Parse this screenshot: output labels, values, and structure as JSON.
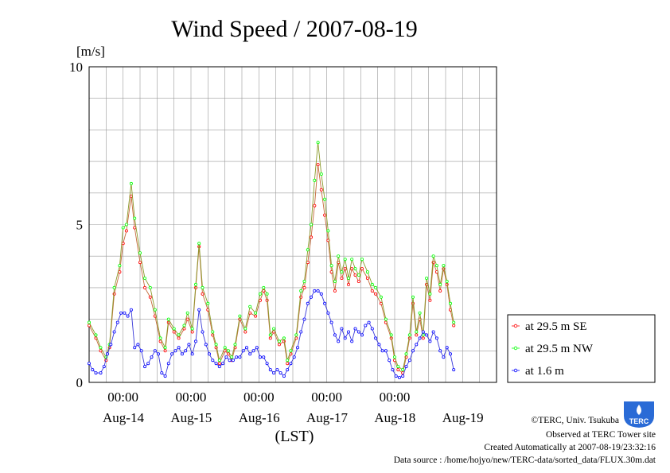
{
  "chart_data": {
    "type": "line",
    "title": "Wind Speed / 2007-08-19",
    "ylabel": "[m/s]",
    "xlabel": "(LST)",
    "ylim": [
      0,
      10
    ],
    "yticks": [
      "0",
      "5",
      "10"
    ],
    "x_range_days": [
      0,
      6
    ],
    "x_axis_start": "2007-08-13 12:00",
    "x_time_ticks": [
      "00:00",
      "00:00",
      "00:00",
      "00:00",
      "00:00"
    ],
    "x_date_labels": [
      "Aug-14",
      "Aug-15",
      "Aug-16",
      "Aug-17",
      "Aug-18",
      "Aug-19"
    ],
    "grid": true,
    "legend_position": "right",
    "series": [
      {
        "name": "at 29.5 m SE",
        "color": "#ff0000",
        "points": [
          [
            0.0,
            1.8
          ],
          [
            0.1,
            1.4
          ],
          [
            0.17,
            1.0
          ],
          [
            0.25,
            0.7
          ],
          [
            0.3,
            1.1
          ],
          [
            0.37,
            2.8
          ],
          [
            0.45,
            3.5
          ],
          [
            0.5,
            4.4
          ],
          [
            0.55,
            4.8
          ],
          [
            0.62,
            5.9
          ],
          [
            0.67,
            4.9
          ],
          [
            0.75,
            3.8
          ],
          [
            0.82,
            3.0
          ],
          [
            0.9,
            2.7
          ],
          [
            0.97,
            2.1
          ],
          [
            1.05,
            1.3
          ],
          [
            1.12,
            1.0
          ],
          [
            1.17,
            1.9
          ],
          [
            1.25,
            1.6
          ],
          [
            1.32,
            1.4
          ],
          [
            1.4,
            1.7
          ],
          [
            1.45,
            2.0
          ],
          [
            1.52,
            1.6
          ],
          [
            1.57,
            3.0
          ],
          [
            1.62,
            4.3
          ],
          [
            1.67,
            2.8
          ],
          [
            1.75,
            2.3
          ],
          [
            1.82,
            1.5
          ],
          [
            1.87,
            1.1
          ],
          [
            1.92,
            0.6
          ],
          [
            2.0,
            1.0
          ],
          [
            2.05,
            0.9
          ],
          [
            2.1,
            0.7
          ],
          [
            2.15,
            1.1
          ],
          [
            2.22,
            2.0
          ],
          [
            2.3,
            1.6
          ],
          [
            2.37,
            2.2
          ],
          [
            2.45,
            2.1
          ],
          [
            2.52,
            2.6
          ],
          [
            2.57,
            2.9
          ],
          [
            2.62,
            2.6
          ],
          [
            2.67,
            1.4
          ],
          [
            2.72,
            1.6
          ],
          [
            2.8,
            1.2
          ],
          [
            2.87,
            1.3
          ],
          [
            2.92,
            0.6
          ],
          [
            2.97,
            0.9
          ],
          [
            3.05,
            1.4
          ],
          [
            3.12,
            2.7
          ],
          [
            3.17,
            3.0
          ],
          [
            3.22,
            3.8
          ],
          [
            3.27,
            4.6
          ],
          [
            3.32,
            5.6
          ],
          [
            3.37,
            6.9
          ],
          [
            3.42,
            6.1
          ],
          [
            3.47,
            5.3
          ],
          [
            3.52,
            4.5
          ],
          [
            3.57,
            3.5
          ],
          [
            3.62,
            2.9
          ],
          [
            3.67,
            3.8
          ],
          [
            3.72,
            3.3
          ],
          [
            3.77,
            3.6
          ],
          [
            3.82,
            3.1
          ],
          [
            3.87,
            3.6
          ],
          [
            3.92,
            3.4
          ],
          [
            3.97,
            3.2
          ],
          [
            4.02,
            3.6
          ],
          [
            4.1,
            3.3
          ],
          [
            4.17,
            2.9
          ],
          [
            4.22,
            2.8
          ],
          [
            4.3,
            2.5
          ],
          [
            4.37,
            1.9
          ],
          [
            4.45,
            1.4
          ],
          [
            4.5,
            0.7
          ],
          [
            4.55,
            0.4
          ],
          [
            4.62,
            0.3
          ],
          [
            4.67,
            0.8
          ],
          [
            4.72,
            1.4
          ],
          [
            4.77,
            2.5
          ],
          [
            4.82,
            1.5
          ],
          [
            4.87,
            2.0
          ],
          [
            4.92,
            1.4
          ],
          [
            4.97,
            3.1
          ],
          [
            5.02,
            2.6
          ],
          [
            5.07,
            3.8
          ],
          [
            5.12,
            3.5
          ],
          [
            5.17,
            2.9
          ],
          [
            5.22,
            3.6
          ],
          [
            5.27,
            3.1
          ],
          [
            5.32,
            2.3
          ],
          [
            5.37,
            1.8
          ]
        ]
      },
      {
        "name": "at 29.5 m NW",
        "color": "#00ff00",
        "points": [
          [
            0.0,
            1.9
          ],
          [
            0.1,
            1.5
          ],
          [
            0.17,
            1.1
          ],
          [
            0.25,
            0.8
          ],
          [
            0.3,
            1.2
          ],
          [
            0.37,
            3.0
          ],
          [
            0.45,
            3.7
          ],
          [
            0.5,
            4.9
          ],
          [
            0.55,
            5.0
          ],
          [
            0.62,
            6.3
          ],
          [
            0.67,
            5.2
          ],
          [
            0.75,
            4.1
          ],
          [
            0.82,
            3.3
          ],
          [
            0.9,
            3.0
          ],
          [
            0.97,
            2.3
          ],
          [
            1.05,
            1.4
          ],
          [
            1.12,
            1.1
          ],
          [
            1.17,
            2.0
          ],
          [
            1.25,
            1.7
          ],
          [
            1.32,
            1.5
          ],
          [
            1.4,
            1.8
          ],
          [
            1.45,
            2.2
          ],
          [
            1.52,
            1.7
          ],
          [
            1.57,
            3.1
          ],
          [
            1.62,
            4.4
          ],
          [
            1.67,
            3.0
          ],
          [
            1.75,
            2.5
          ],
          [
            1.82,
            1.6
          ],
          [
            1.87,
            1.2
          ],
          [
            1.92,
            0.7
          ],
          [
            2.0,
            1.1
          ],
          [
            2.05,
            1.0
          ],
          [
            2.1,
            0.8
          ],
          [
            2.15,
            1.2
          ],
          [
            2.22,
            2.1
          ],
          [
            2.3,
            1.7
          ],
          [
            2.37,
            2.4
          ],
          [
            2.45,
            2.2
          ],
          [
            2.52,
            2.8
          ],
          [
            2.57,
            3.0
          ],
          [
            2.62,
            2.8
          ],
          [
            2.67,
            1.5
          ],
          [
            2.72,
            1.7
          ],
          [
            2.8,
            1.3
          ],
          [
            2.87,
            1.4
          ],
          [
            2.92,
            0.7
          ],
          [
            2.97,
            1.0
          ],
          [
            3.05,
            1.5
          ],
          [
            3.12,
            2.9
          ],
          [
            3.17,
            3.2
          ],
          [
            3.22,
            4.2
          ],
          [
            3.27,
            5.0
          ],
          [
            3.32,
            6.4
          ],
          [
            3.37,
            7.6
          ],
          [
            3.42,
            6.6
          ],
          [
            3.47,
            5.8
          ],
          [
            3.52,
            4.8
          ],
          [
            3.57,
            3.7
          ],
          [
            3.62,
            3.2
          ],
          [
            3.67,
            4.0
          ],
          [
            3.72,
            3.5
          ],
          [
            3.77,
            3.9
          ],
          [
            3.82,
            3.3
          ],
          [
            3.87,
            3.9
          ],
          [
            3.92,
            3.6
          ],
          [
            3.97,
            3.4
          ],
          [
            4.02,
            3.9
          ],
          [
            4.1,
            3.5
          ],
          [
            4.17,
            3.1
          ],
          [
            4.22,
            3.0
          ],
          [
            4.3,
            2.7
          ],
          [
            4.37,
            2.0
          ],
          [
            4.45,
            1.5
          ],
          [
            4.5,
            0.8
          ],
          [
            4.55,
            0.5
          ],
          [
            4.62,
            0.4
          ],
          [
            4.67,
            0.9
          ],
          [
            4.72,
            1.5
          ],
          [
            4.77,
            2.7
          ],
          [
            4.82,
            1.6
          ],
          [
            4.87,
            2.2
          ],
          [
            4.92,
            1.5
          ],
          [
            4.97,
            3.3
          ],
          [
            5.02,
            2.8
          ],
          [
            5.07,
            4.0
          ],
          [
            5.12,
            3.7
          ],
          [
            5.17,
            3.1
          ],
          [
            5.22,
            3.7
          ],
          [
            5.27,
            3.2
          ],
          [
            5.32,
            2.5
          ],
          [
            5.37,
            1.9
          ]
        ]
      },
      {
        "name": "at 1.6 m",
        "color": "#0000ff",
        "points": [
          [
            0.0,
            0.6
          ],
          [
            0.05,
            0.4
          ],
          [
            0.1,
            0.3
          ],
          [
            0.17,
            0.3
          ],
          [
            0.22,
            0.5
          ],
          [
            0.27,
            0.9
          ],
          [
            0.32,
            1.2
          ],
          [
            0.37,
            1.6
          ],
          [
            0.42,
            1.9
          ],
          [
            0.47,
            2.2
          ],
          [
            0.52,
            2.2
          ],
          [
            0.57,
            2.1
          ],
          [
            0.62,
            2.3
          ],
          [
            0.67,
            1.1
          ],
          [
            0.72,
            1.2
          ],
          [
            0.77,
            1.0
          ],
          [
            0.82,
            0.5
          ],
          [
            0.87,
            0.6
          ],
          [
            0.92,
            0.8
          ],
          [
            0.97,
            1.0
          ],
          [
            1.02,
            0.9
          ],
          [
            1.07,
            0.3
          ],
          [
            1.12,
            0.2
          ],
          [
            1.17,
            0.6
          ],
          [
            1.22,
            0.9
          ],
          [
            1.27,
            1.0
          ],
          [
            1.32,
            1.1
          ],
          [
            1.37,
            0.9
          ],
          [
            1.42,
            1.0
          ],
          [
            1.47,
            1.2
          ],
          [
            1.52,
            0.9
          ],
          [
            1.57,
            1.3
          ],
          [
            1.62,
            2.3
          ],
          [
            1.67,
            1.6
          ],
          [
            1.72,
            1.2
          ],
          [
            1.77,
            0.9
          ],
          [
            1.82,
            0.7
          ],
          [
            1.87,
            0.6
          ],
          [
            1.92,
            0.5
          ],
          [
            1.97,
            0.6
          ],
          [
            2.02,
            0.8
          ],
          [
            2.07,
            0.7
          ],
          [
            2.12,
            0.7
          ],
          [
            2.17,
            0.8
          ],
          [
            2.22,
            0.8
          ],
          [
            2.27,
            1.0
          ],
          [
            2.32,
            1.1
          ],
          [
            2.37,
            0.9
          ],
          [
            2.42,
            1.0
          ],
          [
            2.47,
            1.1
          ],
          [
            2.52,
            0.8
          ],
          [
            2.57,
            0.8
          ],
          [
            2.62,
            0.6
          ],
          [
            2.67,
            0.4
          ],
          [
            2.72,
            0.3
          ],
          [
            2.77,
            0.4
          ],
          [
            2.82,
            0.3
          ],
          [
            2.87,
            0.2
          ],
          [
            2.92,
            0.4
          ],
          [
            2.97,
            0.6
          ],
          [
            3.02,
            0.8
          ],
          [
            3.07,
            1.1
          ],
          [
            3.12,
            1.6
          ],
          [
            3.17,
            2.0
          ],
          [
            3.22,
            2.5
          ],
          [
            3.27,
            2.7
          ],
          [
            3.32,
            2.9
          ],
          [
            3.37,
            2.9
          ],
          [
            3.42,
            2.8
          ],
          [
            3.47,
            2.5
          ],
          [
            3.52,
            2.2
          ],
          [
            3.57,
            1.9
          ],
          [
            3.62,
            1.5
          ],
          [
            3.67,
            1.3
          ],
          [
            3.72,
            1.7
          ],
          [
            3.77,
            1.4
          ],
          [
            3.82,
            1.6
          ],
          [
            3.87,
            1.3
          ],
          [
            3.92,
            1.7
          ],
          [
            3.97,
            1.6
          ],
          [
            4.02,
            1.5
          ],
          [
            4.07,
            1.8
          ],
          [
            4.12,
            1.9
          ],
          [
            4.17,
            1.7
          ],
          [
            4.22,
            1.4
          ],
          [
            4.27,
            1.2
          ],
          [
            4.32,
            1.0
          ],
          [
            4.37,
            1.0
          ],
          [
            4.42,
            0.7
          ],
          [
            4.47,
            0.4
          ],
          [
            4.52,
            0.2
          ],
          [
            4.57,
            0.15
          ],
          [
            4.62,
            0.2
          ],
          [
            4.67,
            0.5
          ],
          [
            4.72,
            0.7
          ],
          [
            4.77,
            1.0
          ],
          [
            4.82,
            1.2
          ],
          [
            4.87,
            1.4
          ],
          [
            4.92,
            1.6
          ],
          [
            4.97,
            1.5
          ],
          [
            5.02,
            1.3
          ],
          [
            5.07,
            1.6
          ],
          [
            5.12,
            1.4
          ],
          [
            5.17,
            1.0
          ],
          [
            5.22,
            0.8
          ],
          [
            5.27,
            1.1
          ],
          [
            5.32,
            0.9
          ],
          [
            5.37,
            0.4
          ]
        ]
      }
    ]
  },
  "footer": {
    "credit": "©TERC, Univ. Tsukuba",
    "observed": "Observed at TERC Tower site",
    "created": "Created Automatically at 2007-08-19/23:32:16",
    "source": "Data source : /home/hojyo/new/TERC-data/sorted_data/FLUX.30m.dat"
  },
  "logo": {
    "text": "TERC",
    "color": "#2a6bd6"
  }
}
